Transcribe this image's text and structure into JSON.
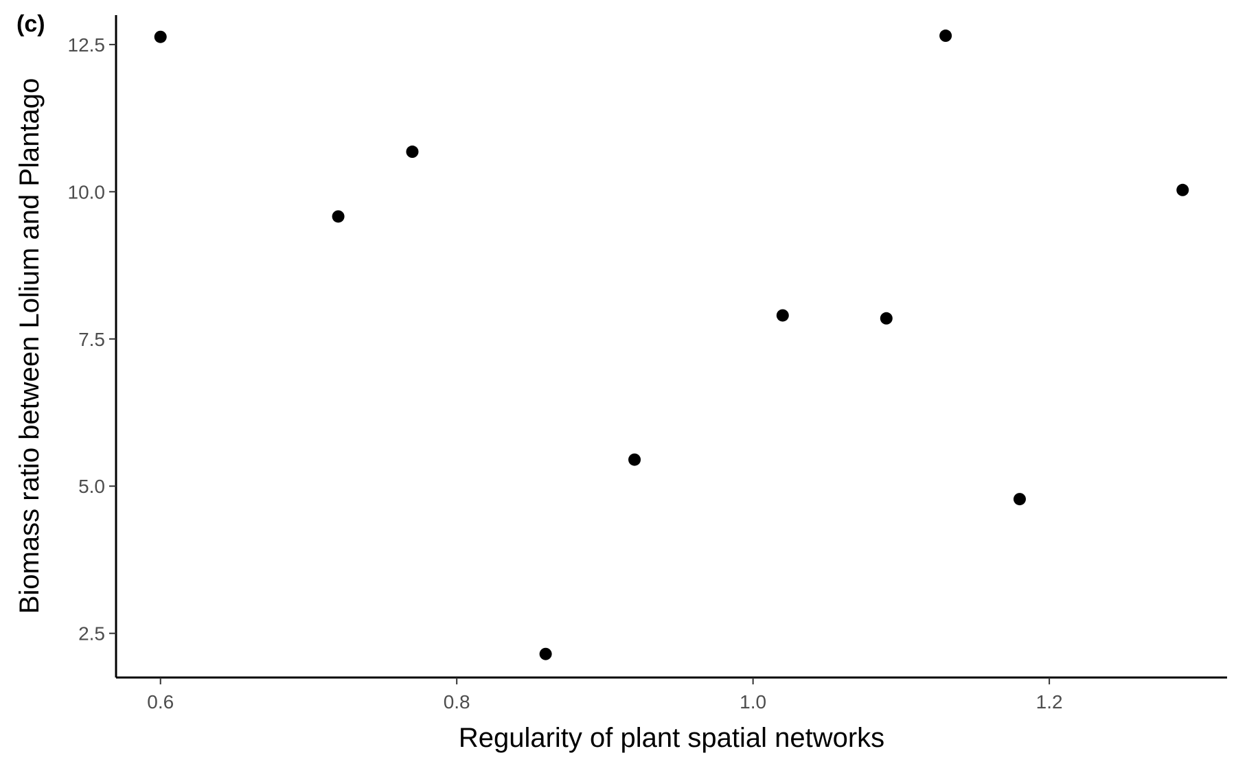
{
  "panel_label": "(c)",
  "chart_data": {
    "type": "scatter",
    "xlabel": "Regularity of plant spatial networks",
    "ylabel": "Biomass ratio between Lolium and Plantago",
    "xlim": [
      0.57,
      1.32
    ],
    "ylim": [
      1.75,
      13.0
    ],
    "x_ticks": [
      0.6,
      0.8,
      1.0,
      1.2
    ],
    "x_tick_labels": [
      "0.6",
      "0.8",
      "1.0",
      "1.2"
    ],
    "y_ticks": [
      2.5,
      5.0,
      7.5,
      10.0,
      12.5
    ],
    "y_tick_labels": [
      "2.5",
      "5.0",
      "7.5",
      "10.0",
      "12.5"
    ],
    "grid": false,
    "point_color": "#000000",
    "points": [
      {
        "x": 0.6,
        "y": 12.63
      },
      {
        "x": 0.72,
        "y": 9.58
      },
      {
        "x": 0.77,
        "y": 10.68
      },
      {
        "x": 0.86,
        "y": 2.15
      },
      {
        "x": 0.92,
        "y": 5.45
      },
      {
        "x": 1.02,
        "y": 7.9
      },
      {
        "x": 1.09,
        "y": 7.85
      },
      {
        "x": 1.13,
        "y": 12.65
      },
      {
        "x": 1.18,
        "y": 4.78
      },
      {
        "x": 1.29,
        "y": 10.03
      }
    ]
  }
}
